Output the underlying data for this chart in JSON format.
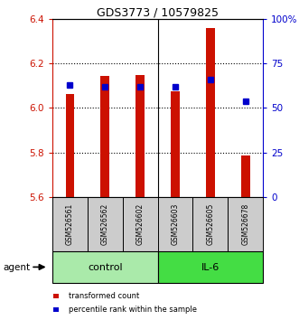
{
  "title": "GDS3773 / 10579825",
  "samples": [
    "GSM526561",
    "GSM526562",
    "GSM526602",
    "GSM526603",
    "GSM526605",
    "GSM526678"
  ],
  "transformed_counts": [
    6.065,
    6.145,
    6.148,
    6.075,
    6.36,
    5.785
  ],
  "percentile_ranks": [
    63,
    62,
    62,
    62,
    66,
    54
  ],
  "ylim_left": [
    5.6,
    6.4
  ],
  "ylim_right": [
    0,
    100
  ],
  "yticks_left": [
    5.6,
    5.8,
    6.0,
    6.2,
    6.4
  ],
  "yticks_right": [
    0,
    25,
    50,
    75,
    100
  ],
  "ytick_labels_right": [
    "0",
    "25",
    "50",
    "75",
    "100%"
  ],
  "bar_color": "#cc1100",
  "dot_color": "#0000cc",
  "bar_bottom": 5.6,
  "bar_width": 0.25,
  "sample_box_color": "#cccccc",
  "left_tick_color": "#cc1100",
  "right_tick_color": "#0000cc",
  "control_color": "#aaeaaa",
  "il6_color": "#44dd44",
  "legend_items": [
    {
      "label": "transformed count",
      "color": "#cc1100"
    },
    {
      "label": "percentile rank within the sample",
      "color": "#0000cc"
    }
  ],
  "agent_label": "agent",
  "figsize": [
    3.31,
    3.54
  ],
  "dpi": 100
}
